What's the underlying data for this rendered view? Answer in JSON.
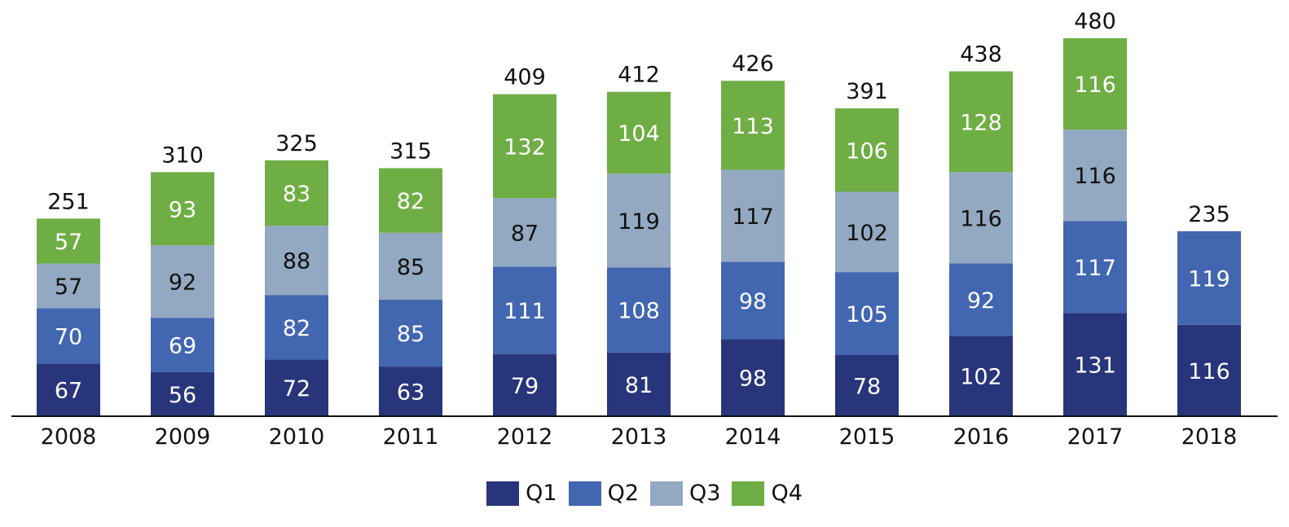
{
  "chart_data": {
    "type": "bar",
    "stacked": true,
    "categories": [
      "2008",
      "2009",
      "2010",
      "2011",
      "2012",
      "2013",
      "2014",
      "2015",
      "2016",
      "2017",
      "2018"
    ],
    "series": [
      {
        "name": "Q1",
        "color": "#28357a",
        "values": [
          67,
          56,
          72,
          63,
          79,
          81,
          98,
          78,
          102,
          131,
          116
        ]
      },
      {
        "name": "Q2",
        "color": "#4266b0",
        "values": [
          70,
          69,
          82,
          85,
          111,
          108,
          98,
          105,
          92,
          117,
          119
        ]
      },
      {
        "name": "Q3",
        "color": "#93a9c2",
        "values": [
          57,
          92,
          88,
          85,
          87,
          119,
          117,
          102,
          116,
          116,
          null
        ]
      },
      {
        "name": "Q4",
        "color": "#6fae44",
        "values": [
          57,
          93,
          83,
          82,
          132,
          104,
          113,
          106,
          128,
          116,
          null
        ]
      }
    ],
    "totals": [
      251,
      310,
      325,
      315,
      409,
      412,
      426,
      391,
      438,
      480,
      235
    ],
    "ylim": [
      0,
      480
    ],
    "legend_position": "bottom",
    "grid": false,
    "title": "",
    "xlabel": "",
    "ylabel": ""
  }
}
